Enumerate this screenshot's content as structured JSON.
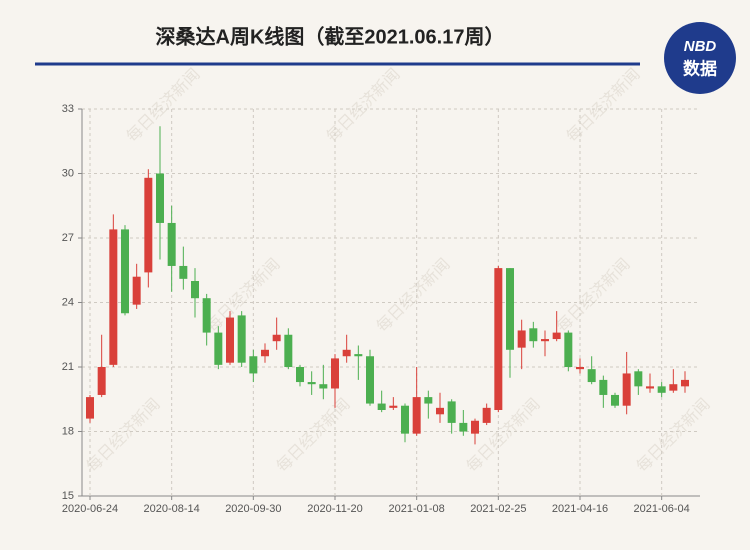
{
  "chart_data": {
    "type": "candlestick",
    "title": "深桑达A周K线图（截至2021.06.17周）",
    "logo_top": "NBD",
    "logo_bottom": "数据",
    "watermark": "每日经济新闻",
    "categories": [
      "2020-06-24",
      null,
      null,
      null,
      null,
      null,
      null,
      "2020-08-14",
      null,
      null,
      null,
      null,
      null,
      null,
      "2020-09-30",
      null,
      null,
      null,
      null,
      null,
      null,
      "2020-11-20",
      null,
      null,
      null,
      null,
      null,
      null,
      "2021-01-08",
      null,
      null,
      null,
      null,
      null,
      null,
      "2021-02-25",
      null,
      null,
      null,
      null,
      null,
      null,
      "2021-04-16",
      null,
      null,
      null,
      null,
      null,
      null,
      "2021-06-04",
      null,
      null
    ],
    "open": [
      18.6,
      19.7,
      21.1,
      27.4,
      23.9,
      25.4,
      30.0,
      27.7,
      25.7,
      25.0,
      24.2,
      22.6,
      21.2,
      23.4,
      21.5,
      21.5,
      22.2,
      22.5,
      21.0,
      20.3,
      20.2,
      20.0,
      21.5,
      21.6,
      21.5,
      19.3,
      19.1,
      19.2,
      17.9,
      19.6,
      18.8,
      19.4,
      18.4,
      17.9,
      18.4,
      19.0,
      25.6,
      21.9,
      22.8,
      22.2,
      22.3,
      22.6,
      20.9,
      20.9,
      20.4,
      19.7,
      19.2,
      20.8,
      20.0,
      20.1,
      19.9,
      20.1
    ],
    "high": [
      19.7,
      22.5,
      28.1,
      27.6,
      25.8,
      30.2,
      32.2,
      28.5,
      26.6,
      25.6,
      24.4,
      22.9,
      23.6,
      23.6,
      21.8,
      22.1,
      23.3,
      22.8,
      21.1,
      20.8,
      21.1,
      21.6,
      22.5,
      22.0,
      21.8,
      19.9,
      19.6,
      19.3,
      21.0,
      19.9,
      19.8,
      19.5,
      19.0,
      18.6,
      19.3,
      25.7,
      25.6,
      23.2,
      23.1,
      22.7,
      23.6,
      22.7,
      21.4,
      21.5,
      20.6,
      19.8,
      21.7,
      20.9,
      20.7,
      20.3,
      20.9,
      20.8
    ],
    "low": [
      18.4,
      19.6,
      21.0,
      23.4,
      23.7,
      24.7,
      26.0,
      24.5,
      24.6,
      23.3,
      22.0,
      20.9,
      21.1,
      21.0,
      20.3,
      21.2,
      21.8,
      20.9,
      20.1,
      19.7,
      19.5,
      19.1,
      21.2,
      20.4,
      19.2,
      18.9,
      19.0,
      17.5,
      17.8,
      18.6,
      18.4,
      17.9,
      17.8,
      17.4,
      18.3,
      18.9,
      20.5,
      20.9,
      21.9,
      21.5,
      22.2,
      20.8,
      20.7,
      20.2,
      19.1,
      19.1,
      18.8,
      19.7,
      19.8,
      19.6,
      19.8,
      19.8
    ],
    "close": [
      19.6,
      21.0,
      27.4,
      23.5,
      25.2,
      29.8,
      27.7,
      25.7,
      25.1,
      24.2,
      22.6,
      21.1,
      23.3,
      21.2,
      20.7,
      21.8,
      22.5,
      21.0,
      20.3,
      20.2,
      20.0,
      21.4,
      21.8,
      21.5,
      19.3,
      19.0,
      19.2,
      17.9,
      19.6,
      19.3,
      19.1,
      18.4,
      18.0,
      18.5,
      19.1,
      25.6,
      21.8,
      22.7,
      22.2,
      22.3,
      22.6,
      21.0,
      21.0,
      20.3,
      19.7,
      19.2,
      20.7,
      20.1,
      20.1,
      19.8,
      20.2,
      20.4
    ],
    "up_color": "#d9403a",
    "down_color": "#4caf50",
    "ylim": [
      15,
      33
    ],
    "yticks": [
      15,
      18,
      21,
      24,
      27,
      30,
      33
    ],
    "grid": true
  }
}
